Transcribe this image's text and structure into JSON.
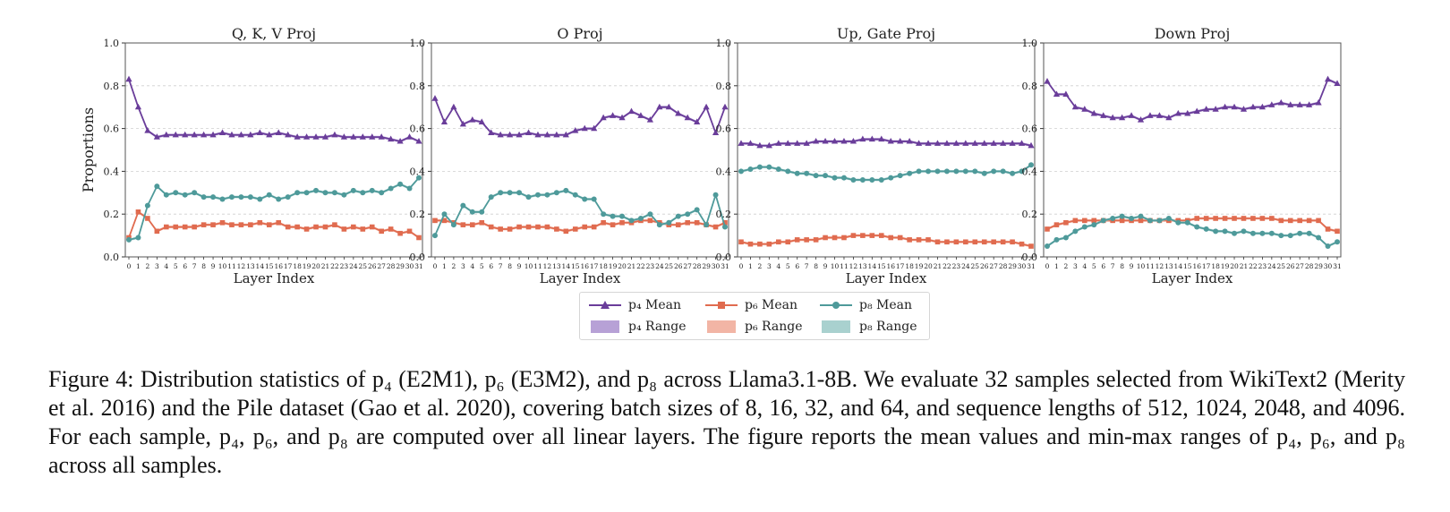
{
  "colors": {
    "p4": "#6a3d9a",
    "p6": "#e06b4f",
    "p8": "#4e9a9a",
    "p4_fill": "#b7a1d6",
    "p6_fill": "#f2b5a5",
    "p8_fill": "#a9d1cf"
  },
  "legend": [
    {
      "label": "p₄ Mean",
      "kind": "mean",
      "series": "p4"
    },
    {
      "label": "p₆ Mean",
      "kind": "mean",
      "series": "p6"
    },
    {
      "label": "p₈ Mean",
      "kind": "mean",
      "series": "p8"
    },
    {
      "label": "p₄ Range",
      "kind": "range",
      "series": "p4"
    },
    {
      "label": "p₆ Range",
      "kind": "range",
      "series": "p6"
    },
    {
      "label": "p₈ Range",
      "kind": "range",
      "series": "p8"
    }
  ],
  "caption": "Figure 4: Distribution statistics of p₄ (E2M1), p₆ (E3M2), and p₈ across Llama3.1-8B. We evaluate 32 samples selected from WikiText2 (Merity et al. 2016) and the Pile dataset (Gao et al. 2020), covering batch sizes of 8, 16, 32, and 64, and sequence lengths of 512, 1024, 2048, and 4096. For each sample, p₄, p₆, and p₈ are computed over all linear layers. The figure reports the mean values and min-max ranges of p₄, p₆, and p₈ across all samples.",
  "chart_data": [
    {
      "type": "line",
      "title": "Q, K, V Proj",
      "xlabel": "Layer Index",
      "ylabel": "Proportions",
      "ylim": [
        0,
        1
      ],
      "yticks": [
        "0.0",
        "0.2",
        "0.4",
        "0.6",
        "0.8",
        "1.0"
      ],
      "grid": "horizontal dashed",
      "x": [
        0,
        1,
        2,
        3,
        4,
        5,
        6,
        7,
        8,
        9,
        10,
        11,
        12,
        13,
        14,
        15,
        16,
        17,
        18,
        19,
        20,
        21,
        22,
        23,
        24,
        25,
        26,
        27,
        28,
        29,
        30,
        31
      ],
      "series": [
        {
          "name": "p4",
          "values": [
            0.83,
            0.7,
            0.59,
            0.56,
            0.57,
            0.57,
            0.57,
            0.57,
            0.57,
            0.57,
            0.58,
            0.57,
            0.57,
            0.57,
            0.58,
            0.57,
            0.58,
            0.57,
            0.56,
            0.56,
            0.56,
            0.56,
            0.57,
            0.56,
            0.56,
            0.56,
            0.56,
            0.56,
            0.55,
            0.54,
            0.56,
            0.54
          ]
        },
        {
          "name": "p6",
          "values": [
            0.09,
            0.21,
            0.18,
            0.12,
            0.14,
            0.14,
            0.14,
            0.14,
            0.15,
            0.15,
            0.16,
            0.15,
            0.15,
            0.15,
            0.16,
            0.15,
            0.16,
            0.14,
            0.14,
            0.13,
            0.14,
            0.14,
            0.15,
            0.13,
            0.14,
            0.13,
            0.14,
            0.12,
            0.13,
            0.11,
            0.12,
            0.09
          ]
        },
        {
          "name": "p8",
          "values": [
            0.08,
            0.09,
            0.24,
            0.33,
            0.29,
            0.3,
            0.29,
            0.3,
            0.28,
            0.28,
            0.27,
            0.28,
            0.28,
            0.28,
            0.27,
            0.29,
            0.27,
            0.28,
            0.3,
            0.3,
            0.31,
            0.3,
            0.3,
            0.29,
            0.31,
            0.3,
            0.31,
            0.3,
            0.32,
            0.34,
            0.32,
            0.37
          ]
        }
      ]
    },
    {
      "type": "line",
      "title": "O Proj",
      "xlabel": "Layer Index",
      "ylabel": "",
      "ylim": [
        0,
        1
      ],
      "yticks": [
        "0.0",
        "0.2",
        "0.4",
        "0.6",
        "0.8",
        "1.0"
      ],
      "grid": "horizontal dashed",
      "x": [
        0,
        1,
        2,
        3,
        4,
        5,
        6,
        7,
        8,
        9,
        10,
        11,
        12,
        13,
        14,
        15,
        16,
        17,
        18,
        19,
        20,
        21,
        22,
        23,
        24,
        25,
        26,
        27,
        28,
        29,
        30,
        31
      ],
      "series": [
        {
          "name": "p4",
          "values": [
            0.74,
            0.63,
            0.7,
            0.62,
            0.64,
            0.63,
            0.58,
            0.57,
            0.57,
            0.57,
            0.58,
            0.57,
            0.57,
            0.57,
            0.57,
            0.59,
            0.6,
            0.6,
            0.65,
            0.66,
            0.65,
            0.68,
            0.66,
            0.64,
            0.7,
            0.7,
            0.67,
            0.65,
            0.63,
            0.7,
            0.58,
            0.7
          ]
        },
        {
          "name": "p6",
          "values": [
            0.17,
            0.17,
            0.16,
            0.15,
            0.15,
            0.16,
            0.14,
            0.13,
            0.13,
            0.14,
            0.14,
            0.14,
            0.14,
            0.13,
            0.12,
            0.13,
            0.14,
            0.14,
            0.16,
            0.15,
            0.16,
            0.16,
            0.17,
            0.17,
            0.16,
            0.15,
            0.15,
            0.16,
            0.16,
            0.15,
            0.14,
            0.16
          ]
        },
        {
          "name": "p8",
          "values": [
            0.1,
            0.2,
            0.15,
            0.24,
            0.21,
            0.21,
            0.28,
            0.3,
            0.3,
            0.3,
            0.28,
            0.29,
            0.29,
            0.3,
            0.31,
            0.29,
            0.27,
            0.27,
            0.2,
            0.19,
            0.19,
            0.17,
            0.18,
            0.2,
            0.15,
            0.16,
            0.19,
            0.2,
            0.22,
            0.15,
            0.29,
            0.14
          ]
        }
      ]
    },
    {
      "type": "line",
      "title": "Up, Gate Proj",
      "xlabel": "Layer Index",
      "ylabel": "",
      "ylim": [
        0,
        1
      ],
      "yticks": [
        "0.0",
        "0.2",
        "0.4",
        "0.6",
        "0.8",
        "1.0"
      ],
      "grid": "horizontal dashed",
      "x": [
        0,
        1,
        2,
        3,
        4,
        5,
        6,
        7,
        8,
        9,
        10,
        11,
        12,
        13,
        14,
        15,
        16,
        17,
        18,
        19,
        20,
        21,
        22,
        23,
        24,
        25,
        26,
        27,
        28,
        29,
        30,
        31
      ],
      "series": [
        {
          "name": "p4",
          "values": [
            0.53,
            0.53,
            0.52,
            0.52,
            0.53,
            0.53,
            0.53,
            0.53,
            0.54,
            0.54,
            0.54,
            0.54,
            0.54,
            0.55,
            0.55,
            0.55,
            0.54,
            0.54,
            0.54,
            0.53,
            0.53,
            0.53,
            0.53,
            0.53,
            0.53,
            0.53,
            0.53,
            0.53,
            0.53,
            0.53,
            0.53,
            0.52
          ]
        },
        {
          "name": "p6",
          "values": [
            0.07,
            0.06,
            0.06,
            0.06,
            0.07,
            0.07,
            0.08,
            0.08,
            0.08,
            0.09,
            0.09,
            0.09,
            0.1,
            0.1,
            0.1,
            0.1,
            0.09,
            0.09,
            0.08,
            0.08,
            0.08,
            0.07,
            0.07,
            0.07,
            0.07,
            0.07,
            0.07,
            0.07,
            0.07,
            0.07,
            0.06,
            0.05
          ]
        },
        {
          "name": "p8",
          "values": [
            0.4,
            0.41,
            0.42,
            0.42,
            0.41,
            0.4,
            0.39,
            0.39,
            0.38,
            0.38,
            0.37,
            0.37,
            0.36,
            0.36,
            0.36,
            0.36,
            0.37,
            0.38,
            0.39,
            0.4,
            0.4,
            0.4,
            0.4,
            0.4,
            0.4,
            0.4,
            0.39,
            0.4,
            0.4,
            0.39,
            0.4,
            0.43
          ]
        }
      ]
    },
    {
      "type": "line",
      "title": "Down Proj",
      "xlabel": "Layer Index",
      "ylabel": "",
      "ylim": [
        0,
        1
      ],
      "yticks": [
        "0.0",
        "0.2",
        "0.4",
        "0.6",
        "0.8",
        "1.0"
      ],
      "grid": "horizontal dashed",
      "x": [
        0,
        1,
        2,
        3,
        4,
        5,
        6,
        7,
        8,
        9,
        10,
        11,
        12,
        13,
        14,
        15,
        16,
        17,
        18,
        19,
        20,
        21,
        22,
        23,
        24,
        25,
        26,
        27,
        28,
        29,
        30,
        31
      ],
      "series": [
        {
          "name": "p4",
          "values": [
            0.82,
            0.76,
            0.76,
            0.7,
            0.69,
            0.67,
            0.66,
            0.65,
            0.65,
            0.66,
            0.64,
            0.66,
            0.66,
            0.65,
            0.67,
            0.67,
            0.68,
            0.69,
            0.69,
            0.7,
            0.7,
            0.69,
            0.7,
            0.7,
            0.71,
            0.72,
            0.71,
            0.71,
            0.71,
            0.72,
            0.83,
            0.81
          ]
        },
        {
          "name": "p6",
          "values": [
            0.13,
            0.15,
            0.16,
            0.17,
            0.17,
            0.17,
            0.17,
            0.17,
            0.17,
            0.17,
            0.17,
            0.17,
            0.17,
            0.17,
            0.17,
            0.17,
            0.18,
            0.18,
            0.18,
            0.18,
            0.18,
            0.18,
            0.18,
            0.18,
            0.18,
            0.17,
            0.17,
            0.17,
            0.17,
            0.17,
            0.13,
            0.12
          ]
        },
        {
          "name": "p8",
          "values": [
            0.05,
            0.08,
            0.09,
            0.12,
            0.14,
            0.15,
            0.17,
            0.18,
            0.19,
            0.18,
            0.19,
            0.17,
            0.17,
            0.18,
            0.16,
            0.16,
            0.14,
            0.13,
            0.12,
            0.12,
            0.11,
            0.12,
            0.11,
            0.11,
            0.11,
            0.1,
            0.1,
            0.11,
            0.11,
            0.09,
            0.05,
            0.07
          ]
        }
      ]
    }
  ]
}
